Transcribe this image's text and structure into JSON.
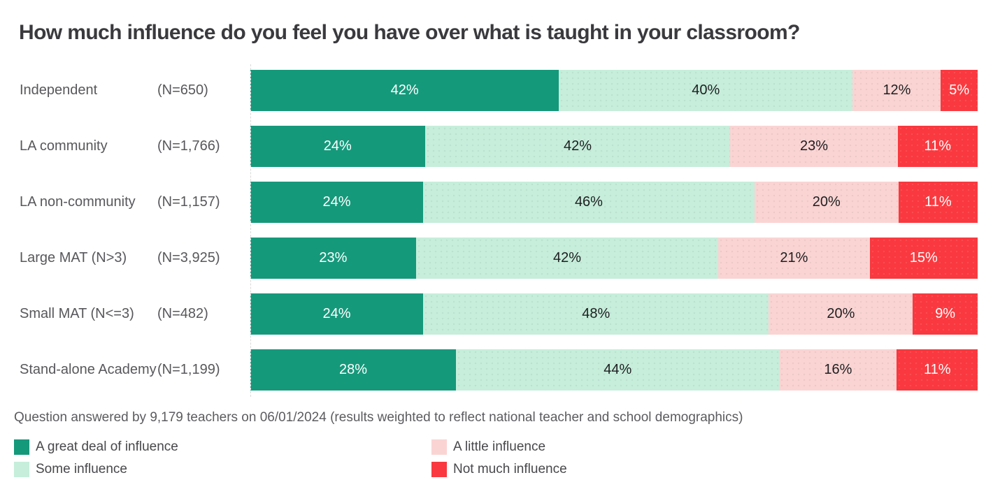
{
  "title": "How much influence do you feel you have over what is taught in your classroom?",
  "footnote": "Question answered by 9,179 teachers on 06/01/2024 (results weighted to reflect national teacher and school demographics)",
  "chart_data": {
    "type": "bar",
    "orientation": "horizontal",
    "stacked": true,
    "unit": "%",
    "title": "How much influence do you feel you have over what is taught in your classroom?",
    "categories": [
      "Independent",
      "LA community",
      "LA non-community",
      "Large MAT (N>3)",
      "Small MAT (N<=3)",
      "Stand-alone Academy"
    ],
    "sample_sizes": [
      "(N=650)",
      "(N=1,766)",
      "(N=1,157)",
      "(N=3,925)",
      "(N=482)",
      "(N=1,199)"
    ],
    "series": [
      {
        "name": "A great deal of influence",
        "color": "#15997B",
        "values": [
          42,
          24,
          24,
          23,
          24,
          28
        ]
      },
      {
        "name": "Some influence",
        "color": "#C6EEDB",
        "values": [
          40,
          42,
          46,
          42,
          48,
          44
        ]
      },
      {
        "name": "A little influence",
        "color": "#FAD4D3",
        "values": [
          12,
          23,
          20,
          21,
          20,
          16
        ]
      },
      {
        "name": "Not much influence",
        "color": "#F9393F",
        "values": [
          5,
          11,
          11,
          15,
          9,
          11
        ]
      }
    ],
    "value_labels": "inside",
    "legend_position": "bottom",
    "xlim": [
      0,
      100
    ],
    "grid": false
  },
  "legend": {
    "items": [
      {
        "label": "A great deal of influence",
        "color": "#15997B"
      },
      {
        "label": "Some influence",
        "color": "#C6EEDB"
      },
      {
        "label": "A little influence",
        "color": "#FAD4D3"
      },
      {
        "label": "Not much influence",
        "color": "#F9393F"
      }
    ]
  }
}
